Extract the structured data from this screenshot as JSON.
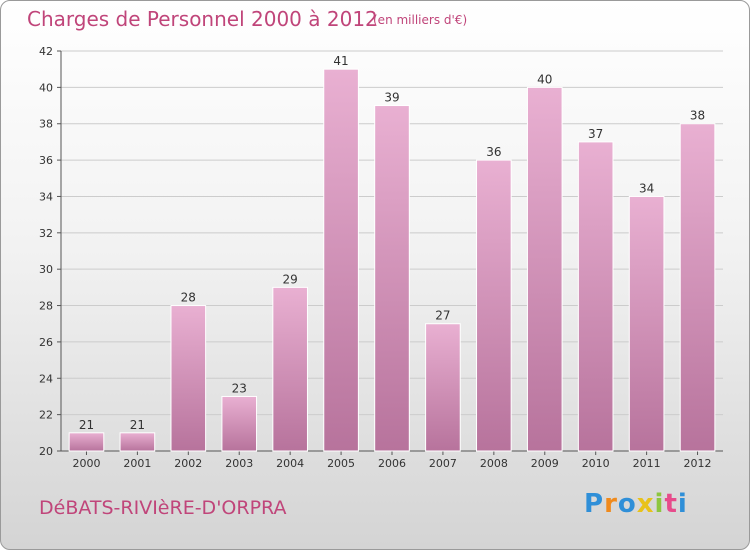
{
  "header": {
    "title": "Charges de Personnel 2000 à 2012",
    "subtitle": "(en milliers d'€)"
  },
  "footer": {
    "commune": "DéBATS-RIVIèRE-D'ORPRA",
    "logo": [
      "P",
      "r",
      "o",
      "x",
      "i",
      "t",
      "i"
    ],
    "logo_colors": [
      "#2f8fd8",
      "#f08a1c",
      "#2f8fd8",
      "#e8c21a",
      "#8dc63f",
      "#e74b8b",
      "#2f8fd8"
    ]
  },
  "colors": {
    "bar_light": "#e9b0d2",
    "bar_dark": "#b7739c",
    "bar_edge": "#ffffff",
    "grid": "#cccccc"
  },
  "chart_data": {
    "type": "bar",
    "categories": [
      "2000",
      "2001",
      "2002",
      "2003",
      "2004",
      "2005",
      "2006",
      "2007",
      "2008",
      "2009",
      "2010",
      "2011",
      "2012"
    ],
    "values": [
      21,
      21,
      28,
      23,
      29,
      41,
      39,
      27,
      36,
      40,
      37,
      34,
      38
    ],
    "title": "Charges de Personnel 2000 à 2012",
    "ylim": [
      20,
      42
    ],
    "yticks": [
      20,
      22,
      24,
      26,
      28,
      30,
      32,
      34,
      36,
      38,
      40,
      42
    ],
    "grid": true
  }
}
